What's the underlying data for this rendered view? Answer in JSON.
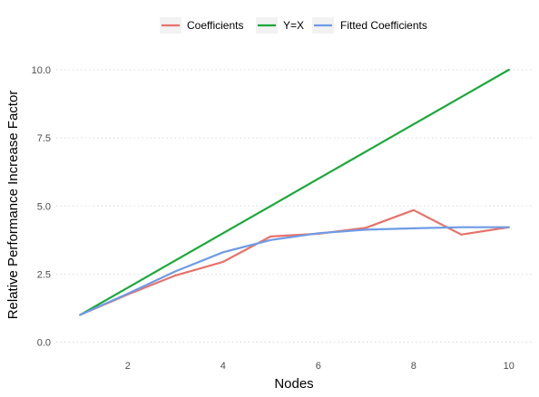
{
  "chart_data": {
    "type": "line",
    "title": "",
    "xlabel": "Nodes",
    "ylabel": "Relative Performance Increase Factor",
    "xlim": [
      0.5,
      10.5
    ],
    "ylim": [
      -0.25,
      10.5
    ],
    "x_ticks": [
      2,
      4,
      6,
      8,
      10
    ],
    "x_tick_labels": [
      "2",
      "4",
      "6",
      "8",
      "10"
    ],
    "y_ticks": [
      0,
      2.5,
      5,
      7.5,
      10
    ],
    "y_tick_labels": [
      "0.0",
      "2.5",
      "5.0",
      "7.5",
      "10.0"
    ],
    "grid": "horizontal-dotted",
    "legend_position": "top",
    "x": [
      1,
      2,
      3,
      4,
      5,
      6,
      7,
      8,
      9,
      10
    ],
    "series": [
      {
        "name": "Coefficients",
        "color": "#e7726b",
        "values": [
          1.0,
          1.75,
          2.45,
          2.95,
          3.88,
          3.98,
          4.2,
          4.85,
          3.95,
          4.22
        ]
      },
      {
        "name": "Y=X",
        "color": "#1aa83a",
        "values": [
          1,
          2,
          3,
          4,
          5,
          6,
          7,
          8,
          9,
          10
        ]
      },
      {
        "name": "Fitted Coefficients",
        "color": "#6e9be6",
        "values": [
          1.0,
          1.78,
          2.6,
          3.3,
          3.75,
          4.0,
          4.13,
          4.18,
          4.22,
          4.22
        ]
      }
    ]
  }
}
